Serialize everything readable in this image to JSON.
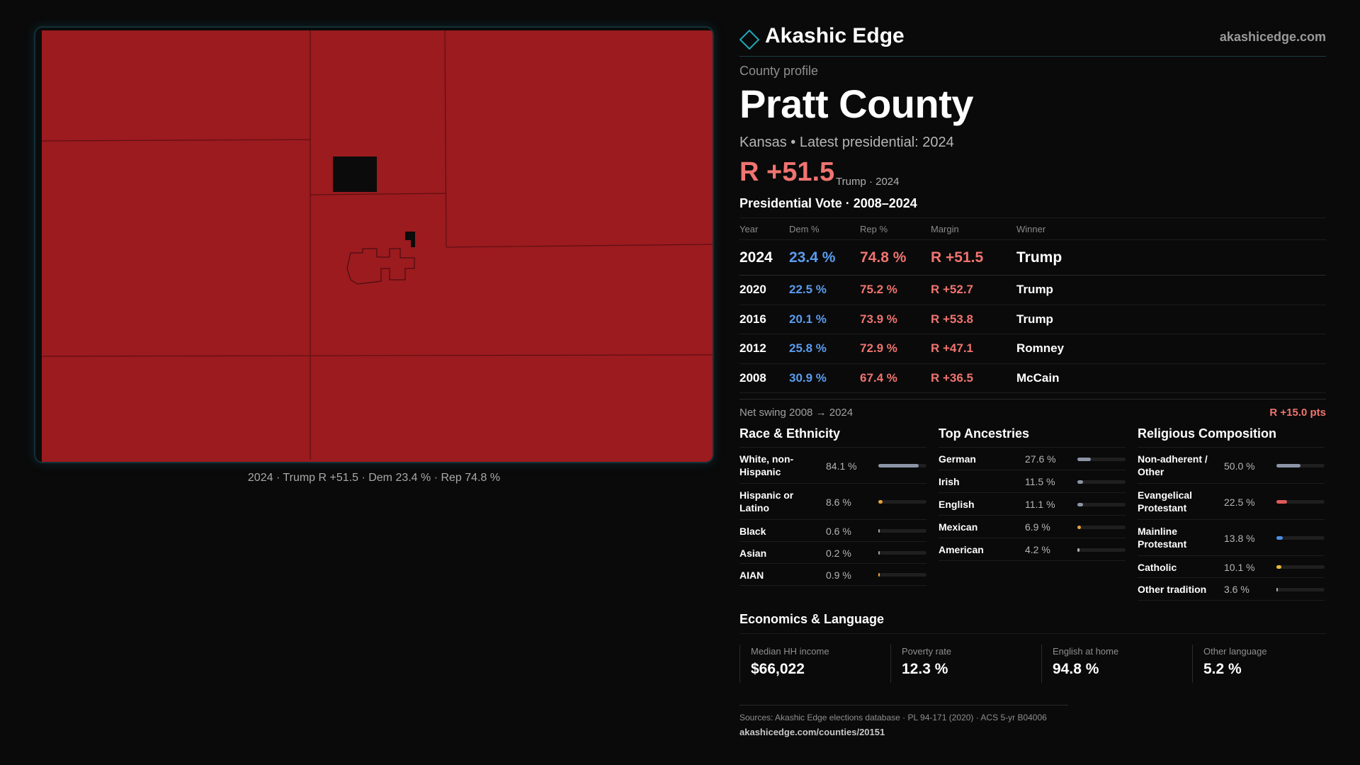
{
  "brand": {
    "name": "Akashic Edge",
    "url": "akashicedge.com",
    "accent": "#1ea8b8"
  },
  "profile": {
    "kicker": "County profile",
    "county": "Pratt County",
    "subtitle": "Kansas • Latest presidential: 2024",
    "headline_margin": "R +51.5",
    "headline_note": "Trump · 2024"
  },
  "map": {
    "caption": "2024 · Trump R +51.5 · Dem 23.4 % · Rep 74.8 %",
    "fill_color": "#9b1b1f",
    "boundary_color": "#5e0f12",
    "nodata_color": "#0b0b0b"
  },
  "votes": {
    "title": "Presidential Vote · 2008–2024",
    "headers": {
      "year": "Year",
      "dem": "Dem %",
      "rep": "Rep %",
      "margin": "Margin",
      "winner": "Winner"
    },
    "rows": [
      {
        "year": "2024",
        "dem": "23.4 %",
        "rep": "74.8 %",
        "margin": "R +51.5",
        "winner": "Trump"
      },
      {
        "year": "2020",
        "dem": "22.5 %",
        "rep": "75.2 %",
        "margin": "R +52.7",
        "winner": "Trump"
      },
      {
        "year": "2016",
        "dem": "20.1 %",
        "rep": "73.9 %",
        "margin": "R +53.8",
        "winner": "Trump"
      },
      {
        "year": "2012",
        "dem": "25.8 %",
        "rep": "72.9 %",
        "margin": "R +47.1",
        "winner": "Romney"
      },
      {
        "year": "2008",
        "dem": "30.9 %",
        "rep": "67.4 %",
        "margin": "R +36.5",
        "winner": "McCain"
      }
    ],
    "swing_label": "Net swing 2008 → 2024",
    "swing_value": "R +15.0 pts"
  },
  "race": {
    "title": "Race & Ethnicity",
    "items": [
      {
        "label": "White, non-Hispanic",
        "value": "84.1 %",
        "pct": 84.1,
        "color": "#8b95a6"
      },
      {
        "label": "Hispanic or Latino",
        "value": "8.6 %",
        "pct": 8.6,
        "color": "#e8a33a"
      },
      {
        "label": "Black",
        "value": "0.6 %",
        "pct": 0.6,
        "color": "#a0a0a0"
      },
      {
        "label": "Asian",
        "value": "0.2 %",
        "pct": 0.2,
        "color": "#a0a0a0"
      },
      {
        "label": "AIAN",
        "value": "0.9 %",
        "pct": 0.9,
        "color": "#e8a33a"
      }
    ]
  },
  "ancestry": {
    "title": "Top Ancestries",
    "items": [
      {
        "label": "German",
        "value": "27.6 %",
        "pct": 27.6,
        "color": "#8b95a6"
      },
      {
        "label": "Irish",
        "value": "11.5 %",
        "pct": 11.5,
        "color": "#8b95a6"
      },
      {
        "label": "English",
        "value": "11.1 %",
        "pct": 11.1,
        "color": "#8b95a6"
      },
      {
        "label": "Mexican",
        "value": "6.9 %",
        "pct": 6.9,
        "color": "#e8a33a"
      },
      {
        "label": "American",
        "value": "4.2 %",
        "pct": 4.2,
        "color": "#b0b0b0"
      }
    ]
  },
  "religion": {
    "title": "Religious Composition",
    "items": [
      {
        "label": "Non-adherent / Other",
        "value": "50.0 %",
        "pct": 50.0,
        "color": "#8b95a6"
      },
      {
        "label": "Evangelical Protestant",
        "value": "22.5 %",
        "pct": 22.5,
        "color": "#e25a5a"
      },
      {
        "label": "Mainline Protestant",
        "value": "13.8 %",
        "pct": 13.8,
        "color": "#4d8de8"
      },
      {
        "label": "Catholic",
        "value": "10.1 %",
        "pct": 10.1,
        "color": "#e8b83a"
      },
      {
        "label": "Other tradition",
        "value": "3.6 %",
        "pct": 3.6,
        "color": "#b0b0b0"
      }
    ]
  },
  "economics": {
    "title": "Economics & Language",
    "stats": [
      {
        "label": "Median HH income",
        "value": "$66,022"
      },
      {
        "label": "Poverty rate",
        "value": "12.3 %"
      },
      {
        "label": "English at home",
        "value": "94.8 %"
      },
      {
        "label": "Other language",
        "value": "5.2 %"
      }
    ]
  },
  "sources": {
    "text": "Sources: Akashic Edge elections database · PL 94-171 (2020) · ACS 5-yr B04006",
    "url": "akashicedge.com/counties/20151"
  }
}
